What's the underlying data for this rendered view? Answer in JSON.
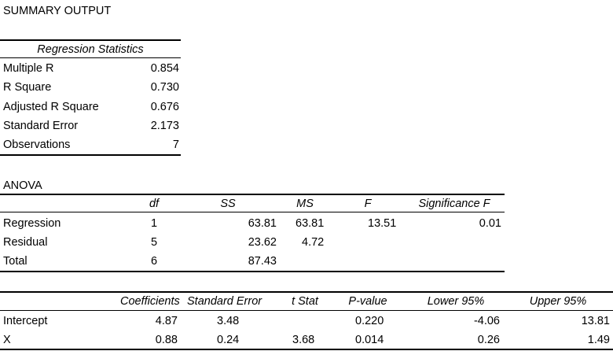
{
  "title": "SUMMARY OUTPUT",
  "regression_statistics": {
    "header": "Regression Statistics",
    "rows": [
      {
        "label": "Multiple R",
        "value": "0.854"
      },
      {
        "label": "R Square",
        "value": "0.730"
      },
      {
        "label": "Adjusted R Square",
        "value": "0.676"
      },
      {
        "label": "Standard Error",
        "value": "2.173"
      },
      {
        "label": "Observations",
        "value": "7"
      }
    ]
  },
  "anova": {
    "title": "ANOVA",
    "headers": {
      "df": "df",
      "ss": "SS",
      "ms": "MS",
      "f": "F",
      "sig_f": "Significance F"
    },
    "rows": [
      {
        "label": "Regression",
        "df": "1",
        "ss": "63.81",
        "ms": "63.81",
        "f": "13.51",
        "sig_f": "0.01"
      },
      {
        "label": "Residual",
        "df": "5",
        "ss": "23.62",
        "ms": "4.72",
        "f": "",
        "sig_f": ""
      },
      {
        "label": "Total",
        "df": "6",
        "ss": "87.43",
        "ms": "",
        "f": "",
        "sig_f": ""
      }
    ]
  },
  "coefficients": {
    "headers": {
      "coef": "Coefficients",
      "se": "Standard Error",
      "t": "t Stat",
      "p": "P-value",
      "lower": "Lower 95%",
      "upper": "Upper 95%"
    },
    "rows": [
      {
        "label": "Intercept",
        "coef": "4.87",
        "se": "3.48",
        "t": "",
        "p": "0.220",
        "lower": "-4.06",
        "upper": "13.81"
      },
      {
        "label": "X",
        "coef": "0.88",
        "se": "0.24",
        "t": "3.68",
        "p": "0.014",
        "lower": "0.26",
        "upper": "1.49"
      }
    ]
  }
}
